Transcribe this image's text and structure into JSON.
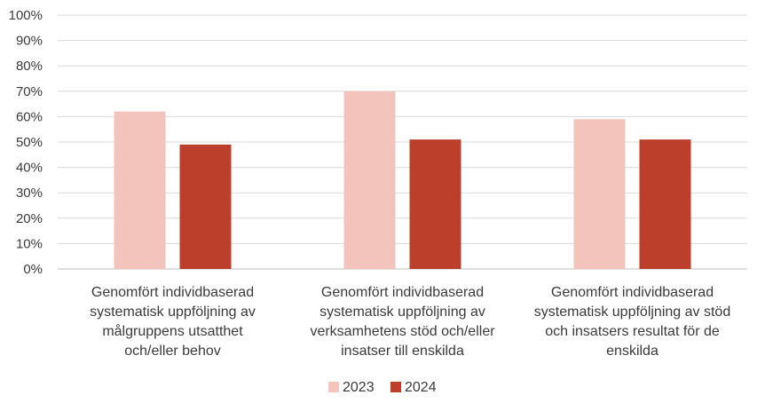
{
  "chart_data": {
    "type": "bar",
    "categories": [
      [
        "Genomfört individbaserad",
        "systematisk uppföljning av",
        "målgruppens utsatthet",
        "och/eller behov"
      ],
      [
        "Genomfört individbaserad",
        "systematisk uppföljning av",
        "verksamhetens stöd och/eller",
        "insatser till enskilda"
      ],
      [
        "Genomfört individbaserad",
        "systematisk uppföljning av stöd",
        "och insatsers resultat för de",
        "enskilda"
      ]
    ],
    "series": [
      {
        "name": "2023",
        "values": [
          62,
          70,
          59
        ],
        "color": "#f2c4bb"
      },
      {
        "name": "2024",
        "values": [
          49,
          51,
          51
        ],
        "color": "#bb3f2a"
      }
    ],
    "yticks": [
      "0%",
      "10%",
      "20%",
      "30%",
      "40%",
      "50%",
      "60%",
      "70%",
      "80%",
      "90%",
      "100%"
    ],
    "ylim": [
      0,
      100
    ],
    "grid": true,
    "legend": "bottom-center",
    "gridline_color": "#d9d9d9",
    "axis_color": "#bfbfbf"
  }
}
